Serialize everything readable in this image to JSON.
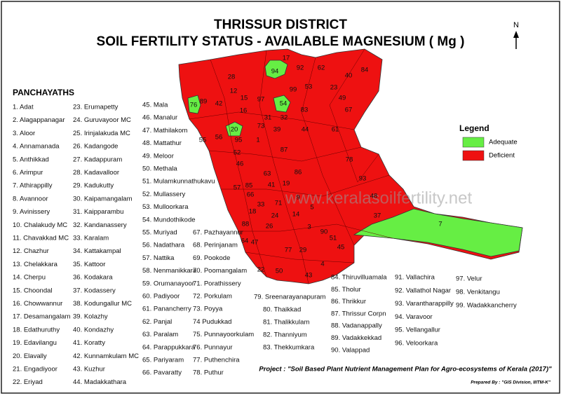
{
  "header": {
    "title": "THRISSUR DISTRICT",
    "subtitle": "SOIL FERTILITY STATUS - AVAILABLE MAGNESIUM ( Mg )"
  },
  "north": "N",
  "list_title": "PANCHAYATHS",
  "panchayaths": [
    "1. Adat",
    "2. Alagappanagar",
    "3. Aloor",
    "4. Annamanada",
    "5. Anthikkad",
    "6. Arimpur",
    "7. Athirappilly",
    "8. Avannoor",
    "9. Avinissery",
    "10. Chalakudy MC",
    "11. Chavakkad  MC",
    "12. Chazhur",
    "13. Chelakkara",
    "14. Cherpu",
    "15. Choondal",
    "16. Chowwannur",
    "17. Desamangalam",
    "18. Edathuruthy",
    "19. Edavilangu",
    "20. Elavally",
    "21. Engadiyoor",
    "22. Eriyad",
    "23. Erumapetty",
    "24. Guruvayoor  MC",
    "25. Irinjalakuda  MC",
    "26. Kadangode",
    "27. Kadappuram",
    "28. Kadavalloor",
    "29. Kadukutty",
    "30. Kaipamangalam",
    "31. Kaipparambu",
    "32. Kandanassery",
    "33. Karalam",
    "34. Kattakampal",
    "35. Kattoor",
    "36. Kodakara",
    "37. Kodassery",
    "38. Kodungallur MC",
    "39. Kolazhy",
    "40. Kondazhy",
    "41. Koratty",
    "42. Kunnamkulam  MC",
    "43. Kuzhur",
    "44. Madakkathara",
    "45. Mala",
    "46. Manalur",
    "47. Mathilakom",
    "48. Mattathur",
    "49. Meloor",
    "50. Methala",
    "51. Mulamkunnathukavu",
    "52. Mullassery",
    "53. Mulloorkara",
    "54. Mundothikode",
    "55. Muriyad",
    "56. Nadathara",
    "57. Nattika",
    "58. Nenmanikkara",
    "59. Orumanayoor",
    "60. Padiyoor",
    "61. Panancherry",
    "62. Panjal",
    "63. Paralam",
    "64. Parappukkara",
    "65. Pariyaram",
    "66. Pavaratty",
    "67. Pazhayannur",
    "68. Perinjanam",
    "69. Pookode",
    "70. Poomangalam",
    "71. Porathissery",
    "72. Porkulam",
    "73. Poyya",
    "74 Pudukkad",
    "75. Punnayoorkulam",
    "76. Punnayur",
    "77. Puthenchira",
    "78. Puthur",
    "79. Sreenarayanapuram",
    "80. Thaikkad",
    "81. Thalikkulam",
    "82. Thanniyum",
    "83. Thekkumkara",
    "84. Thiruvilluamala",
    "85. Tholur",
    "86. Thrikkur",
    "87. Thrissur Corpn",
    "88. Vadanappally",
    "89. Vadakkekkad",
    "90. Valappad",
    "91. Vallachira",
    "92. Vallathol Nagar",
    "93. Varantharappilly",
    "94. Varavoor",
    "95. Vellangallur",
    "96. Veloorkara",
    "97. Velur",
    "98. Venkitangu",
    "99. Wadakkancherry"
  ],
  "map_labels": [
    "94",
    "92",
    "62",
    "40",
    "84",
    "17",
    "28",
    "99",
    "53",
    "23",
    "49",
    "67",
    "83",
    "97",
    "54",
    "12",
    "42",
    "16",
    "15",
    "89",
    "76",
    "32",
    "31",
    "39",
    "44",
    "61",
    "20",
    "56",
    "95",
    "55",
    "73",
    "87",
    "78",
    "46",
    "1",
    "52",
    "93",
    "48",
    "37",
    "7",
    "63",
    "86",
    "19",
    "41",
    "57",
    "85",
    "71",
    "33",
    "90",
    "51",
    "3",
    "43",
    "4",
    "50",
    "22",
    "77",
    "29",
    "45",
    "66",
    "18",
    "14",
    "88",
    "64",
    "47",
    "26",
    "5",
    "9",
    "24"
  ],
  "legend": {
    "title": "Legend",
    "items": [
      {
        "label": "Adequate",
        "color": "#66ee44"
      },
      {
        "label": "Deficient",
        "color": "#ee1111"
      }
    ]
  },
  "watermark": "www.keralasoilfertility.net",
  "project": "Project : \"Soil Based Plant Nutrient Management Plan for Agro-ecosystems of Kerala (2017)\"",
  "prepared": "Prepared By : \"GIS Division, IIITM-K\""
}
